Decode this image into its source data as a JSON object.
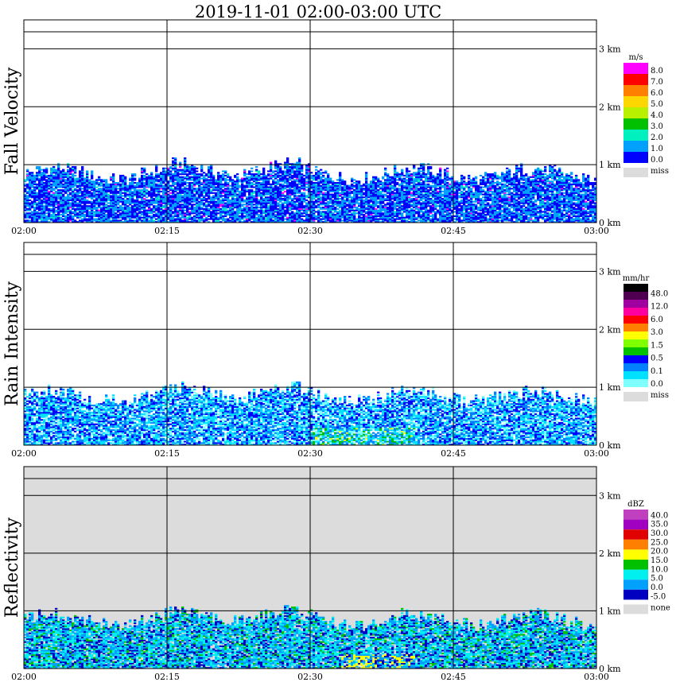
{
  "title": "2019-11-01   02:00-03:00 UTC",
  "colors": {
    "background": "#ffffff",
    "missing": "#dcdcdc",
    "grid": "#000000"
  },
  "chart_data": [
    {
      "type": "heatmap",
      "ylabel": "Fall Velocity",
      "x_ticks": [
        "02:00",
        "02:15",
        "02:30",
        "02:45",
        "03:00"
      ],
      "y_ticks": [
        "0 km",
        "1 km",
        "2 km",
        "3 km"
      ],
      "xlim": [
        "02:00",
        "03:00"
      ],
      "ylim_km": [
        0,
        3.5
      ],
      "echo_top_km": 0.95,
      "background": "white",
      "legend": {
        "unit": "m/s",
        "levels": [
          "8.0",
          "7.0",
          "6.0",
          "5.0",
          "4.0",
          "3.0",
          "2.0",
          "1.0",
          "0.0"
        ],
        "colors": [
          "#ff00ff",
          "#ff0000",
          "#ff8000",
          "#ffd700",
          "#b8f000",
          "#00c000",
          "#00f0c0",
          "#00a0ff",
          "#0000ff"
        ],
        "missing_label": "miss"
      }
    },
    {
      "type": "heatmap",
      "ylabel": "Rain Intensity",
      "x_ticks": [
        "02:00",
        "02:15",
        "02:30",
        "02:45",
        "03:00"
      ],
      "y_ticks": [
        "0 km",
        "1 km",
        "2 km",
        "3 km"
      ],
      "xlim": [
        "02:00",
        "03:00"
      ],
      "ylim_km": [
        0,
        3.5
      ],
      "echo_top_km": 0.95,
      "background": "white",
      "legend": {
        "unit": "mm/hr",
        "levels": [
          "48.0",
          "12.0",
          "6.0",
          "3.0",
          "1.5",
          "0.5",
          "0.1",
          "0.0"
        ],
        "colors": [
          "#000000",
          "#500050",
          "#a000a0",
          "#ff00a0",
          "#ff0000",
          "#ff8000",
          "#ffff00",
          "#80ff00",
          "#00c000",
          "#0000ff",
          "#0080ff",
          "#00e0ff",
          "#80ffff"
        ],
        "missing_label": "miss"
      }
    },
    {
      "type": "heatmap",
      "ylabel": "Reflectivity",
      "x_ticks": [
        "02:00",
        "02:15",
        "02:30",
        "02:45",
        "03:00"
      ],
      "y_ticks": [
        "0 km",
        "1 km",
        "2 km",
        "3 km"
      ],
      "xlim": [
        "02:00",
        "03:00"
      ],
      "ylim_km": [
        0,
        3.5
      ],
      "echo_top_km": 0.95,
      "background": "gray",
      "legend": {
        "unit": "dBZ",
        "levels": [
          "40.0",
          "35.0",
          "30.0",
          "25.0",
          "20.0",
          "15.0",
          "10.0",
          "5.0",
          "0.0",
          "-5.0"
        ],
        "colors": [
          "#c040c0",
          "#a000c0",
          "#e00000",
          "#ff8000",
          "#ffff00",
          "#00c000",
          "#00f0f0",
          "#00a0ff",
          "#0000c0"
        ],
        "missing_label": "none"
      }
    }
  ]
}
